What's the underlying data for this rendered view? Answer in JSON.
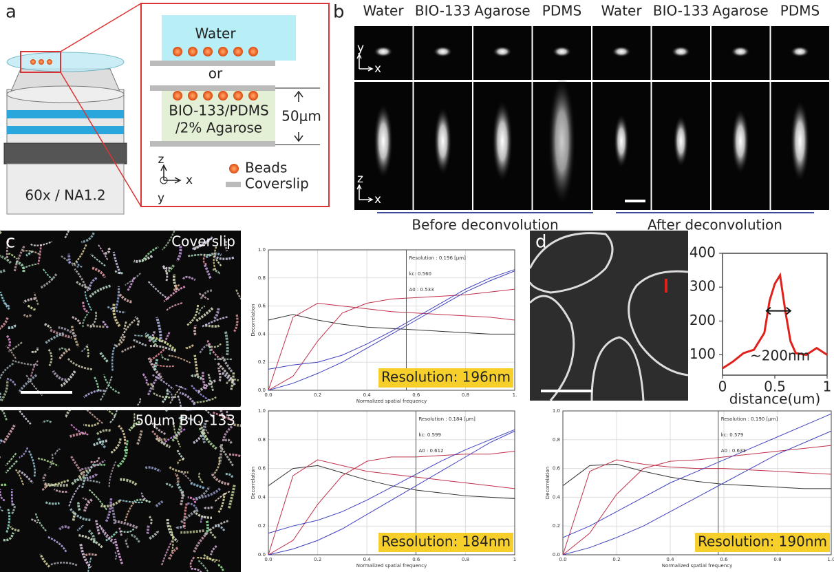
{
  "panel_a": {
    "label": "a",
    "top_medium": "Water",
    "alternative": "or",
    "bottom_medium": [
      "BIO-133/PDMS",
      "/2% Agarose"
    ],
    "thickness": "50μm",
    "axes": [
      "z",
      "x",
      "y"
    ],
    "legend": [
      "Beads",
      "Coverslip"
    ],
    "objective": "60x / NA1.2"
  },
  "panel_b": {
    "label": "b",
    "columns": [
      "Water",
      "BIO-133",
      "Agarose",
      "PDMS",
      "Water",
      "BIO-133",
      "Agarose",
      "PDMS"
    ],
    "xy_axes": [
      "y",
      "x"
    ],
    "xz_axes": [
      "z",
      "x"
    ],
    "groups": [
      "Before deconvolution",
      "After deconvolution"
    ]
  },
  "panel_c": {
    "label": "c",
    "images": [
      "Coverslip",
      "50μm BIO-133"
    ]
  },
  "panel_d": {
    "label": "d"
  },
  "chart_data": [
    {
      "type": "line",
      "xlabel": "Normalized spatial frequency",
      "ylabel": "Decorrelation",
      "xlim": [
        0,
        1
      ],
      "ylim": [
        0,
        1
      ],
      "xticks": [
        {
          "value": 0,
          "label": "0.0"
        },
        0.2,
        0.4,
        0.6,
        0.8,
        {
          "value": 1,
          "label": "1."
        }
      ],
      "yticks": [
        {
          "value": 0,
          "label": "0.0"
        },
        0.2,
        0.4,
        0.6,
        0.8,
        {
          "value": 1,
          "label": "1.0"
        }
      ],
      "grid": true,
      "info": {
        "resolution": "Resolution : 0.196 [µm]",
        "kc": {
          "value": 0.56,
          "label": "kc: 0.560"
        },
        "a0": "A0 : 0.533"
      },
      "annotation": "Resolution: 196nm",
      "x": [
        0,
        0.1,
        0.2,
        0.3,
        0.4,
        0.5,
        0.6,
        0.7,
        0.8,
        0.9,
        1
      ],
      "series": [
        {
          "color": "#333333",
          "values": [
            0.5,
            0.54,
            0.5,
            0.47,
            0.45,
            0.44,
            0.43,
            0.42,
            0.41,
            0.4,
            0.4
          ]
        },
        {
          "color": "#c0304a",
          "values": [
            0,
            0.52,
            0.62,
            0.6,
            0.58,
            0.56,
            0.55,
            0.54,
            0.53,
            0.52,
            0.5
          ]
        },
        {
          "color": "#c0304a",
          "values": [
            0,
            0.1,
            0.35,
            0.55,
            0.62,
            0.65,
            0.66,
            0.67,
            0.68,
            0.7,
            0.72
          ]
        },
        {
          "color": "#4040c0",
          "values": [
            0,
            0.05,
            0.12,
            0.2,
            0.3,
            0.4,
            0.5,
            0.6,
            0.7,
            0.78,
            0.85
          ]
        },
        {
          "color": "#4040c0",
          "values": [
            0.15,
            0.18,
            0.2,
            0.25,
            0.33,
            0.42,
            0.52,
            0.62,
            0.72,
            0.8,
            0.86
          ]
        }
      ]
    },
    {
      "type": "line",
      "xlabel": "Normalized spatial frequency",
      "ylabel": "Decorrelation",
      "xlim": [
        0,
        1
      ],
      "ylim": [
        0,
        1
      ],
      "xticks": [
        {
          "value": 0,
          "label": "0.0"
        },
        0.2,
        0.4,
        0.6,
        0.8,
        1
      ],
      "yticks": [
        {
          "value": 0,
          "label": "0.0"
        },
        0.2,
        0.4,
        0.6,
        0.8,
        {
          "value": 1,
          "label": "1.0"
        }
      ],
      "grid": true,
      "info": {
        "resolution": "Resolution : 0.184 [µm]",
        "kc": {
          "value": 0.599,
          "label": "kc: 0.599"
        },
        "a0": "A0 : 0.612"
      },
      "annotation": "Resolution: 184nm",
      "x": [
        0,
        0.1,
        0.2,
        0.3,
        0.4,
        0.5,
        0.6,
        0.7,
        0.8,
        0.9,
        1
      ],
      "series": [
        {
          "color": "#333333",
          "values": [
            0.48,
            0.6,
            0.62,
            0.57,
            0.52,
            0.48,
            0.45,
            0.43,
            0.41,
            0.4,
            0.39
          ]
        },
        {
          "color": "#c0304a",
          "values": [
            0,
            0.55,
            0.66,
            0.62,
            0.58,
            0.56,
            0.54,
            0.52,
            0.5,
            0.48,
            0.46
          ]
        },
        {
          "color": "#c0304a",
          "values": [
            0,
            0.1,
            0.35,
            0.55,
            0.65,
            0.68,
            0.68,
            0.69,
            0.7,
            0.7,
            0.72
          ]
        },
        {
          "color": "#4040c0",
          "values": [
            0,
            0.04,
            0.1,
            0.18,
            0.28,
            0.38,
            0.48,
            0.58,
            0.68,
            0.78,
            0.86
          ]
        },
        {
          "color": "#4040c0",
          "values": [
            0.15,
            0.2,
            0.24,
            0.3,
            0.38,
            0.47,
            0.56,
            0.65,
            0.73,
            0.8,
            0.87
          ]
        }
      ]
    },
    {
      "type": "line",
      "xlabel": "Normalized spatial frequency",
      "ylabel": "Decorrelation",
      "xlim": [
        0,
        1
      ],
      "ylim": [
        0,
        1
      ],
      "xticks": [
        {
          "value": 0,
          "label": "0.0"
        },
        0.2,
        0.4,
        0.6,
        0.8,
        {
          "value": 1,
          "label": "1.0"
        }
      ],
      "yticks": [
        {
          "value": 0,
          "label": "0.0"
        },
        0.2,
        0.4,
        0.6,
        0.8,
        {
          "value": 1,
          "label": "1.0"
        }
      ],
      "grid": true,
      "info": {
        "resolution": "Resolution : 0.190 [µm]",
        "kc": {
          "value": 0.579,
          "label": "kc: 0.579"
        },
        "a0": "A0 : 0.633"
      },
      "annotation": "Resolution: 190nm",
      "x": [
        0,
        0.1,
        0.2,
        0.3,
        0.4,
        0.5,
        0.6,
        0.7,
        0.8,
        0.9,
        1
      ],
      "series": [
        {
          "color": "#333333",
          "values": [
            0.48,
            0.62,
            0.63,
            0.58,
            0.54,
            0.51,
            0.49,
            0.48,
            0.47,
            0.46,
            0.46
          ]
        },
        {
          "color": "#c0304a",
          "values": [
            0,
            0.58,
            0.66,
            0.63,
            0.61,
            0.6,
            0.6,
            0.59,
            0.58,
            0.57,
            0.56
          ]
        },
        {
          "color": "#c0304a",
          "values": [
            0,
            0.15,
            0.42,
            0.6,
            0.65,
            0.66,
            0.68,
            0.7,
            0.72,
            0.74,
            0.76
          ]
        },
        {
          "color": "#4040c0",
          "values": [
            0,
            0.05,
            0.12,
            0.2,
            0.3,
            0.4,
            0.5,
            0.6,
            0.7,
            0.78,
            0.86
          ]
        },
        {
          "color": "#4040c0",
          "values": [
            0.12,
            0.2,
            0.3,
            0.4,
            0.5,
            0.58,
            0.66,
            0.74,
            0.82,
            0.9,
            0.98
          ]
        }
      ]
    },
    {
      "type": "line",
      "xlabel": "distance(um)",
      "annotation": "~200nm",
      "xlim": [
        0,
        1
      ],
      "ylim": [
        40,
        400
      ],
      "xticks": [
        0,
        0.5,
        1
      ],
      "yticks": [
        100,
        200,
        300,
        400
      ],
      "grid": false,
      "x": [
        0,
        0.1,
        0.2,
        0.3,
        0.4,
        0.45,
        0.5,
        0.55,
        0.6,
        0.65,
        0.7,
        0.8,
        0.9,
        1
      ],
      "series": [
        {
          "color": "#e0201a",
          "values": [
            60,
            80,
            105,
            115,
            165,
            260,
            310,
            335,
            230,
            140,
            105,
            100,
            120,
            100
          ]
        }
      ]
    }
  ]
}
